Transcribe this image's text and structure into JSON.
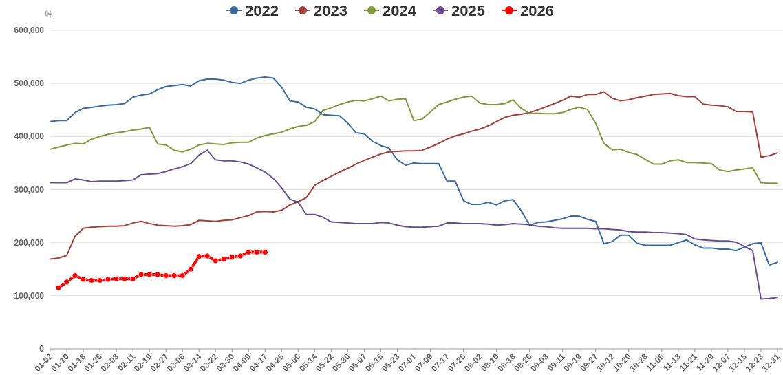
{
  "chart_data": {
    "type": "line",
    "ylabel": "吨",
    "categories": [
      "01-02",
      null,
      "01-10",
      null,
      "01-18",
      null,
      "01-26",
      null,
      "02-03",
      null,
      "02-11",
      null,
      "02-19",
      null,
      "02-27",
      null,
      "03-06",
      null,
      "03-14",
      null,
      "03-22",
      null,
      "03-30",
      null,
      "04-09",
      null,
      "04-17",
      null,
      "04-25",
      null,
      "05-06",
      null,
      "05-14",
      null,
      "05-22",
      null,
      "05-30",
      null,
      "06-07",
      null,
      "06-15",
      null,
      "06-23",
      null,
      "07-01",
      null,
      "07-09",
      null,
      "07-17",
      null,
      "07-25",
      null,
      "08-02",
      null,
      "08-10",
      null,
      "08-18",
      null,
      "08-26",
      null,
      "09-03",
      null,
      "09-11",
      null,
      "09-19",
      null,
      "09-27",
      null,
      "10-12",
      null,
      "10-20",
      null,
      "10-28",
      null,
      "11-05",
      null,
      "11-13",
      null,
      "11-21",
      null,
      "11-29",
      null,
      "12-07",
      null,
      "12-15",
      null,
      "12-23",
      null,
      "12-31"
    ],
    "series": [
      {
        "name": "2022",
        "color": "#3d6a9e",
        "values": [
          428000,
          430000,
          430000,
          445000,
          453000,
          455000,
          457000,
          459000,
          460000,
          462000,
          474000,
          478000,
          480000,
          488000,
          494000,
          496000,
          498000,
          495000,
          505000,
          508000,
          508000,
          506000,
          502000,
          500000,
          506000,
          510000,
          512000,
          510000,
          493000,
          467000,
          465000,
          455000,
          452000,
          441000,
          440000,
          439000,
          425000,
          407000,
          405000,
          391000,
          383000,
          378000,
          356000,
          346000,
          350000,
          349000,
          349000,
          349000,
          316000,
          316000,
          279000,
          272000,
          272000,
          276000,
          271000,
          279000,
          281000,
          260000,
          233000,
          238000,
          239000,
          242000,
          245000,
          250000,
          250000,
          244000,
          240000,
          198000,
          202000,
          214000,
          214000,
          199000,
          195000,
          195000,
          195000,
          195000,
          200000,
          205000,
          196000,
          190000,
          190000,
          188000,
          188000,
          185000,
          192000,
          198000,
          200000,
          158000,
          163000
        ]
      },
      {
        "name": "2023",
        "color": "#a0413c",
        "values": [
          169000,
          171000,
          176000,
          212000,
          227000,
          229000,
          230000,
          231000,
          231000,
          232000,
          237000,
          240000,
          236000,
          233000,
          232000,
          231000,
          232000,
          234000,
          242000,
          241000,
          240000,
          242000,
          243000,
          247000,
          251000,
          258000,
          259000,
          258000,
          261000,
          271000,
          277000,
          285000,
          308000,
          317000,
          325000,
          333000,
          340000,
          348000,
          355000,
          361000,
          367000,
          371000,
          372000,
          373000,
          373000,
          374000,
          380000,
          387000,
          395000,
          401000,
          405000,
          410000,
          414000,
          420000,
          428000,
          436000,
          440000,
          442000,
          445000,
          450000,
          456000,
          462000,
          468000,
          476000,
          474000,
          479000,
          479000,
          484000,
          472000,
          467000,
          469000,
          473000,
          476000,
          479000,
          480000,
          481000,
          477000,
          475000,
          475000,
          461000,
          459000,
          458000,
          456000,
          447000,
          447000,
          446000,
          361000,
          364000,
          369000
        ]
      },
      {
        "name": "2024",
        "color": "#7f9a40",
        "values": [
          376000,
          380000,
          384000,
          387000,
          386000,
          395000,
          400000,
          404000,
          407000,
          409000,
          412000,
          414000,
          417000,
          386000,
          384000,
          374000,
          371000,
          376000,
          384000,
          387000,
          386000,
          385000,
          388000,
          389000,
          389000,
          397000,
          402000,
          405000,
          408000,
          414000,
          419000,
          421000,
          428000,
          449000,
          454000,
          460000,
          465000,
          468000,
          467000,
          471000,
          476000,
          467000,
          470000,
          471000,
          430000,
          433000,
          446000,
          460000,
          465000,
          470000,
          474000,
          476000,
          463000,
          460000,
          460000,
          462000,
          469000,
          453000,
          443000,
          444000,
          443000,
          443000,
          445000,
          451000,
          455000,
          451000,
          425000,
          387000,
          375000,
          376000,
          370000,
          366000,
          357000,
          348000,
          348000,
          354000,
          356000,
          351000,
          351000,
          350000,
          349000,
          337000,
          334000,
          337000,
          339000,
          341000,
          313000,
          312000,
          312000
        ]
      },
      {
        "name": "2025",
        "color": "#664f8c",
        "values": [
          313000,
          313000,
          313000,
          320000,
          318000,
          315000,
          316000,
          316000,
          316000,
          317000,
          318000,
          328000,
          329000,
          330000,
          334000,
          339000,
          343000,
          349000,
          365000,
          374000,
          356000,
          354000,
          354000,
          352000,
          348000,
          341000,
          333000,
          321000,
          303000,
          282000,
          276000,
          253000,
          253000,
          248000,
          239000,
          238000,
          237000,
          236000,
          236000,
          236000,
          238000,
          237000,
          233000,
          230000,
          229000,
          229000,
          230000,
          231000,
          237000,
          237000,
          236000,
          236000,
          236000,
          235000,
          233000,
          234000,
          236000,
          235000,
          234000,
          231000,
          230000,
          228000,
          227000,
          227000,
          227000,
          227000,
          226000,
          226000,
          225000,
          224000,
          221000,
          220000,
          220000,
          219000,
          219000,
          218000,
          217000,
          215000,
          207000,
          205000,
          204000,
          203000,
          203000,
          201000,
          193000,
          185000,
          94000,
          95000,
          97000
        ]
      },
      {
        "name": "2026",
        "color": "#ff0000",
        "marker": "circle",
        "values": [
          null,
          115000,
          126000,
          138000,
          131000,
          129000,
          129000,
          131000,
          132000,
          132000,
          132000,
          140000,
          140000,
          140000,
          138000,
          138000,
          138000,
          150000,
          174000,
          175000,
          166000,
          169000,
          173000,
          175000,
          182000,
          182000,
          182000,
          null,
          null,
          null,
          null,
          null,
          null,
          null,
          null,
          null,
          null,
          null,
          null,
          null,
          null,
          null,
          null,
          null,
          null,
          null,
          null,
          null,
          null,
          null,
          null,
          null,
          null,
          null,
          null,
          null,
          null,
          null,
          null,
          null,
          null,
          null,
          null,
          null,
          null,
          null,
          null,
          null,
          null,
          null,
          null,
          null,
          null,
          null,
          null,
          null,
          null,
          null,
          null,
          null,
          null,
          null,
          null,
          null,
          null,
          null,
          null,
          null,
          null
        ]
      }
    ],
    "ylim": [
      0,
      600000
    ],
    "yticks": [
      {
        "value": 0,
        "label": "0"
      },
      {
        "value": 100000,
        "label": "100,000"
      },
      {
        "value": 200000,
        "label": "200,000"
      },
      {
        "value": 300000,
        "label": "300,000"
      },
      {
        "value": 400000,
        "label": "400,000"
      },
      {
        "value": 500000,
        "label": "500,000"
      },
      {
        "value": 600000,
        "label": "600,000"
      }
    ],
    "grid": "y",
    "legend": "top"
  }
}
